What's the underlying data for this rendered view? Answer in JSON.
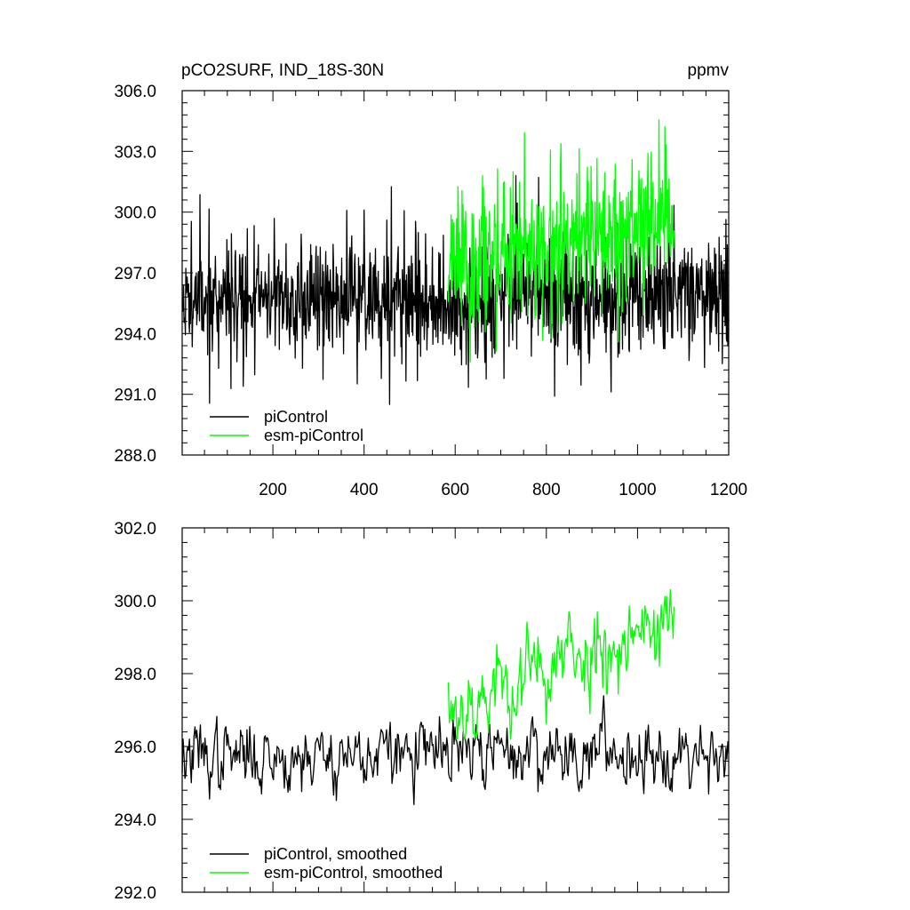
{
  "chart_data": [
    {
      "type": "line",
      "title_left": "pCO2SURF, IND_18S-30N",
      "title_right": "ppmv",
      "xlim": [
        1,
        1200
      ],
      "ylim": [
        288,
        306
      ],
      "x_ticks": [
        200,
        400,
        600,
        800,
        1000,
        1200
      ],
      "x_tick_labels": [
        "200",
        "400",
        "600",
        "800",
        "1000",
        "1200"
      ],
      "y_ticks": [
        288,
        291,
        294,
        297,
        300,
        303,
        306
      ],
      "y_tick_labels": [
        "288.0",
        "291.0",
        "294.0",
        "297.0",
        "300.0",
        "303.0",
        "306.0"
      ],
      "legend_position": "bottom-left",
      "series": [
        {
          "name": "piControl",
          "color": "#000000",
          "x_range": [
            1,
            1200
          ],
          "generator": {
            "kind": "noise",
            "seed": 11,
            "points": 1200,
            "base": [
              295.8,
              295.8
            ],
            "noise": 1.9,
            "spike": 0.05,
            "spike_size": 3.0,
            "clip": [
              290.3,
              301.8
            ]
          }
        },
        {
          "name": "esm-piControl",
          "color": "#00ff00",
          "x_range": [
            585,
            1080
          ],
          "generator": {
            "kind": "noise",
            "seed": 23,
            "points": 496,
            "base": [
              297.3,
              299.6
            ],
            "noise": 2.1,
            "spike": 0.06,
            "spike_size": 3.2,
            "clip": [
              292.6,
              305.8
            ]
          }
        }
      ]
    },
    {
      "type": "line",
      "xlim": [
        1,
        1200
      ],
      "ylim": [
        292,
        302
      ],
      "y_ticks": [
        292,
        294,
        296,
        298,
        300,
        302
      ],
      "y_tick_labels": [
        "292.0",
        "294.0",
        "296.0",
        "298.0",
        "300.0",
        "302.0"
      ],
      "legend_position": "bottom-left",
      "series": [
        {
          "name": "piControl, smoothed",
          "color": "#000000",
          "x_range": [
            1,
            1200
          ],
          "generator": {
            "kind": "smooth",
            "seed": 37,
            "points": 600,
            "base": [
              295.7,
              295.9
            ],
            "noise": 0.55,
            "clip": [
              293.8,
              298.3
            ]
          }
        },
        {
          "name": "esm-piControl, smoothed",
          "color": "#00ff00",
          "x_range": [
            585,
            1080
          ],
          "generator": {
            "kind": "smooth",
            "seed": 53,
            "points": 248,
            "base": [
              297.0,
              299.6
            ],
            "noise": 0.75,
            "clip": [
              296.2,
              301.5
            ]
          }
        }
      ]
    }
  ]
}
